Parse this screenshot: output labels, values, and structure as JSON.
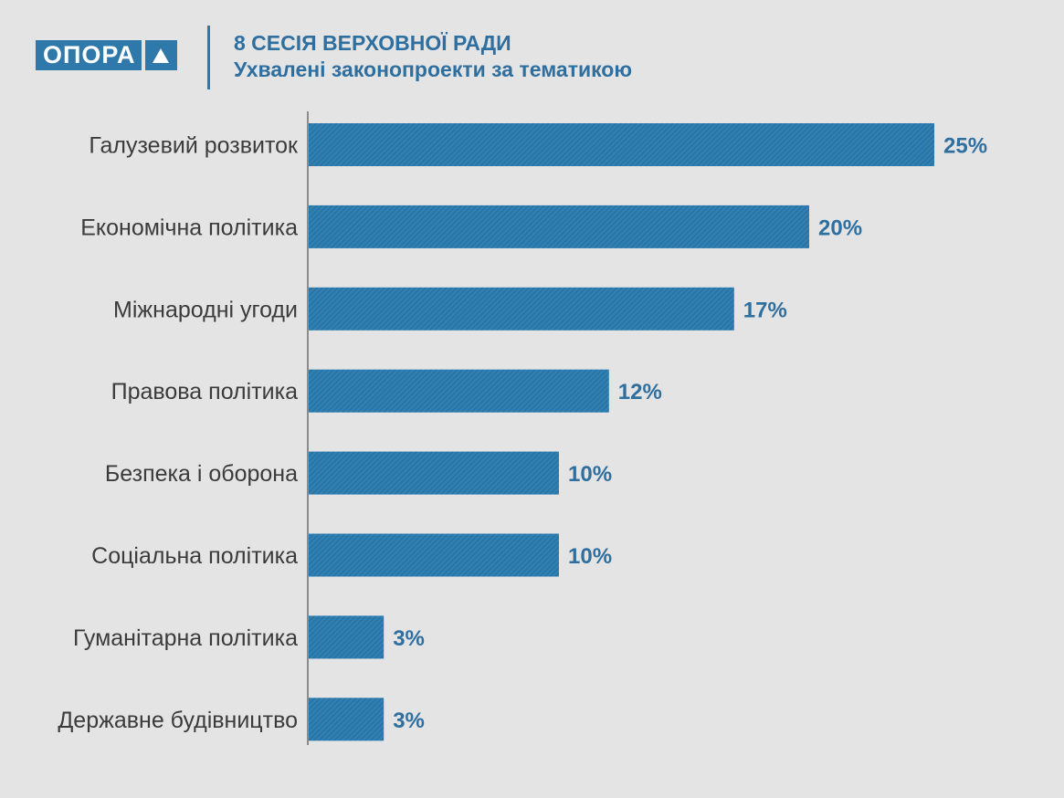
{
  "logo": {
    "text": "ОПОРА"
  },
  "header": {
    "title": "8 СЕСІЯ ВЕРХОВНОЇ РАДИ",
    "subtitle": "Ухвалені законопроекти за тематикою"
  },
  "colors": {
    "bar": "#2f7fb3",
    "accent": "#2f6fa0",
    "background": "#e4e4e4"
  },
  "chart_data": {
    "type": "bar",
    "orientation": "horizontal",
    "title": "8 СЕСІЯ ВЕРХОВНОЇ РАДИ",
    "subtitle": "Ухвалені законопроекти за тематикою",
    "categories": [
      "Галузевий розвиток",
      "Економічна політика",
      "Міжнародні угоди",
      "Правова політика",
      "Безпека і оборона",
      "Соціальна політика",
      "Гуманітарна політика",
      "Державне будівництво"
    ],
    "values": [
      25,
      20,
      17,
      12,
      10,
      10,
      3,
      3
    ],
    "data_labels": [
      "25%",
      "20%",
      "17%",
      "12%",
      "10%",
      "10%",
      "3%",
      "3%"
    ],
    "unit": "%",
    "xlim": [
      0,
      25
    ],
    "grid": false,
    "legend": "none"
  }
}
